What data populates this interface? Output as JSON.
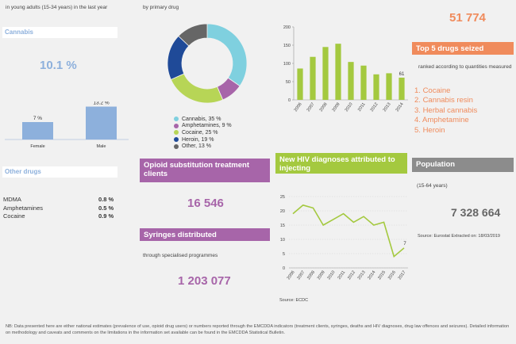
{
  "header": {
    "prevalence_caption": "in young adults (15-34 years) in the last year",
    "treatment_caption": "by primary drug"
  },
  "cannabis": {
    "title": "Cannabis",
    "value": "10.1 %"
  },
  "other_drugs": {
    "title": "Other drugs",
    "rows": [
      {
        "name": "MDMA",
        "value": "0.8 %"
      },
      {
        "name": "Amphetamines",
        "value": "0.5 %"
      },
      {
        "name": "Cocaine",
        "value": "0.9 %"
      }
    ]
  },
  "opioid": {
    "title": "Opioid substitution treatment clients",
    "value": "16 546"
  },
  "syringes": {
    "title": "Syringes distributed",
    "caption": "through specialised programmes",
    "value": "1 203 077"
  },
  "seizures": {
    "top_value": "51 774",
    "title": "Top 5 drugs seized",
    "caption": "ranked according to quantities measured in kilograms",
    "items": [
      "Cocaine",
      "Cannabis resin",
      "Herbal cannabis",
      "Amphetamine",
      "Heroin"
    ]
  },
  "hiv": {
    "title": "New HIV diagnoses attributed to injecting",
    "source": "Source: ECDC"
  },
  "population": {
    "title": "Population",
    "caption": "(15-64 years)",
    "value": "7 328 664",
    "source": "Source: Eurostat Extracted on: 18/03/2019"
  },
  "footnote": "NB: Data presented here are either national estimates (prevalence of use, opioid drug users) or numbers reported through the EMCDDA indicators (treatment clients, syringes, deaths and HIV diagnoses, drug law offences and seizures). Detailed information on methodology and caveats and comments on the limitations in the information set available can be found in the EMCDDA Statistical Bulletin.",
  "colors": {
    "cannabis_blue": "#8db0dc",
    "purple": "#a765a9",
    "green": "#a4c93f",
    "orange": "#f08b5c",
    "grey": "#8c8c8c"
  },
  "chart_data": [
    {
      "type": "bar",
      "categories": [
        "Female",
        "Male"
      ],
      "values": [
        7,
        13.2
      ],
      "labels": [
        "7 %",
        "13.2 %"
      ]
    },
    {
      "type": "pie",
      "categories": [
        "Cannabis, 35 %",
        "Amphetamines, 9 %",
        "Cocaine, 25 %",
        "Heroin, 19 %",
        "Other, 13 %"
      ],
      "values": [
        35,
        9,
        25,
        19,
        13
      ],
      "colors": [
        "#7fd0df",
        "#a765a9",
        "#b7d556",
        "#1f4a98",
        "#666666"
      ]
    },
    {
      "type": "bar",
      "categories": [
        "2006",
        "2007",
        "2008",
        "2009",
        "2010",
        "2011",
        "2012",
        "2013",
        "2014"
      ],
      "values": [
        86,
        118,
        145,
        154,
        104,
        94,
        70,
        73,
        61
      ],
      "ylim": [
        0,
        200
      ],
      "yticks": [
        0,
        50,
        100,
        150,
        200
      ],
      "last_label": "61"
    },
    {
      "type": "line",
      "x": [
        "2006",
        "2007",
        "2008",
        "2009",
        "2010",
        "2011",
        "2012",
        "2013",
        "2014",
        "2015",
        "2016",
        "2017"
      ],
      "values": [
        19,
        22,
        21,
        15,
        17,
        19,
        16,
        18,
        15,
        16,
        4,
        7
      ],
      "ylim": [
        0,
        25
      ],
      "yticks": [
        0,
        5,
        10,
        15,
        20,
        25
      ],
      "last_label": "7"
    }
  ]
}
